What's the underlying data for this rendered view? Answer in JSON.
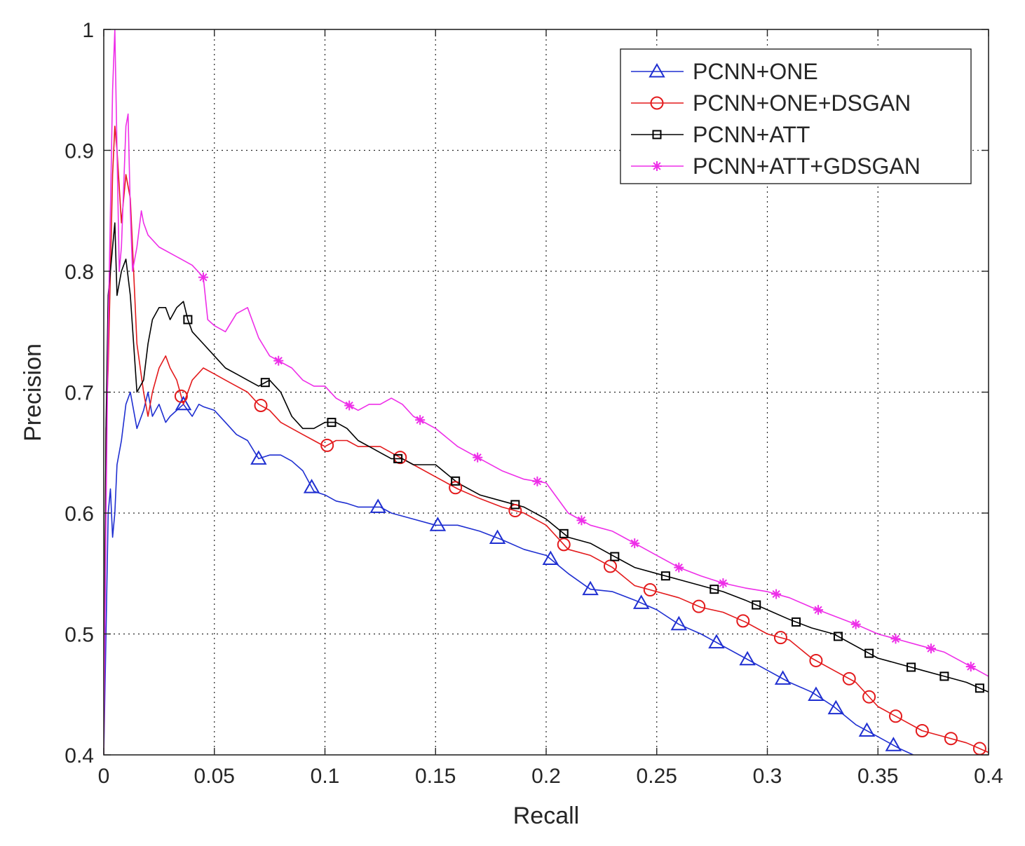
{
  "chart_data": {
    "type": "line",
    "title": "",
    "xlabel": "Recall",
    "ylabel": "Precision",
    "xlim": [
      0,
      0.4
    ],
    "ylim": [
      0.4,
      1
    ],
    "x_ticks": [
      "0",
      "0.05",
      "0.1",
      "0.15",
      "0.2",
      "0.25",
      "0.3",
      "0.35",
      "0.4"
    ],
    "y_ticks": [
      "0.4",
      "0.5",
      "0.6",
      "0.7",
      "0.8",
      "0.9",
      "1"
    ],
    "grid": true,
    "legend_position": "top-right",
    "series": [
      {
        "name": "PCNN+ONE",
        "color": "#1f2fd1",
        "marker": "triangle",
        "x": [
          0.0,
          0.001,
          0.002,
          0.003,
          0.004,
          0.005,
          0.006,
          0.008,
          0.01,
          0.012,
          0.015,
          0.018,
          0.02,
          0.022,
          0.025,
          0.028,
          0.03,
          0.033,
          0.036,
          0.04,
          0.043,
          0.045,
          0.05,
          0.055,
          0.06,
          0.065,
          0.07,
          0.075,
          0.08,
          0.085,
          0.09,
          0.095,
          0.1,
          0.105,
          0.11,
          0.115,
          0.12,
          0.125,
          0.13,
          0.14,
          0.15,
          0.16,
          0.17,
          0.18,
          0.19,
          0.2,
          0.21,
          0.22,
          0.23,
          0.24,
          0.25,
          0.26,
          0.27,
          0.28,
          0.29,
          0.3,
          0.31,
          0.32,
          0.33,
          0.34,
          0.35,
          0.36,
          0.366
        ],
        "y": [
          0.4,
          0.5,
          0.6,
          0.62,
          0.58,
          0.6,
          0.64,
          0.66,
          0.69,
          0.7,
          0.67,
          0.685,
          0.7,
          0.68,
          0.69,
          0.675,
          0.68,
          0.685,
          0.69,
          0.68,
          0.69,
          0.688,
          0.685,
          0.675,
          0.665,
          0.66,
          0.645,
          0.648,
          0.648,
          0.643,
          0.635,
          0.618,
          0.615,
          0.61,
          0.608,
          0.605,
          0.605,
          0.605,
          0.6,
          0.595,
          0.59,
          0.59,
          0.585,
          0.578,
          0.57,
          0.565,
          0.55,
          0.537,
          0.535,
          0.528,
          0.52,
          0.508,
          0.5,
          0.49,
          0.48,
          0.47,
          0.46,
          0.452,
          0.44,
          0.425,
          0.415,
          0.405,
          0.4
        ],
        "marker_x": [
          0.036,
          0.07,
          0.094,
          0.124,
          0.151,
          0.178,
          0.202,
          0.22,
          0.243,
          0.26,
          0.277,
          0.291,
          0.307,
          0.322,
          0.331,
          0.345,
          0.357
        ]
      },
      {
        "name": "PCNN+ONE+DSGAN",
        "color": "#e31a1c",
        "marker": "circle",
        "x": [
          0.0,
          0.001,
          0.002,
          0.003,
          0.004,
          0.005,
          0.006,
          0.008,
          0.01,
          0.012,
          0.015,
          0.018,
          0.02,
          0.022,
          0.025,
          0.028,
          0.03,
          0.033,
          0.036,
          0.04,
          0.045,
          0.05,
          0.055,
          0.06,
          0.065,
          0.07,
          0.075,
          0.08,
          0.085,
          0.09,
          0.095,
          0.1,
          0.105,
          0.11,
          0.115,
          0.12,
          0.125,
          0.13,
          0.135,
          0.14,
          0.15,
          0.16,
          0.17,
          0.18,
          0.19,
          0.2,
          0.21,
          0.22,
          0.23,
          0.24,
          0.25,
          0.26,
          0.27,
          0.28,
          0.29,
          0.3,
          0.31,
          0.32,
          0.33,
          0.34,
          0.35,
          0.36,
          0.37,
          0.38,
          0.39,
          0.4
        ],
        "y": [
          0.4,
          0.67,
          0.72,
          0.8,
          0.88,
          0.92,
          0.9,
          0.84,
          0.88,
          0.86,
          0.74,
          0.7,
          0.68,
          0.7,
          0.72,
          0.73,
          0.72,
          0.71,
          0.69,
          0.71,
          0.72,
          0.715,
          0.71,
          0.705,
          0.7,
          0.69,
          0.685,
          0.675,
          0.67,
          0.665,
          0.66,
          0.655,
          0.66,
          0.66,
          0.655,
          0.655,
          0.655,
          0.65,
          0.645,
          0.64,
          0.63,
          0.62,
          0.612,
          0.605,
          0.6,
          0.59,
          0.57,
          0.565,
          0.555,
          0.54,
          0.535,
          0.53,
          0.522,
          0.518,
          0.51,
          0.5,
          0.495,
          0.48,
          0.47,
          0.46,
          0.44,
          0.43,
          0.42,
          0.415,
          0.41,
          0.402
        ],
        "marker_x": [
          0.035,
          0.071,
          0.101,
          0.134,
          0.159,
          0.186,
          0.208,
          0.229,
          0.247,
          0.269,
          0.289,
          0.306,
          0.322,
          0.337,
          0.346,
          0.358,
          0.37,
          0.383,
          0.396
        ]
      },
      {
        "name": "PCNN+ATT",
        "color": "#000000",
        "marker": "square",
        "x": [
          0.0,
          0.001,
          0.002,
          0.003,
          0.004,
          0.005,
          0.006,
          0.008,
          0.01,
          0.012,
          0.015,
          0.018,
          0.02,
          0.022,
          0.025,
          0.028,
          0.03,
          0.033,
          0.036,
          0.038,
          0.04,
          0.045,
          0.05,
          0.055,
          0.06,
          0.065,
          0.07,
          0.075,
          0.08,
          0.085,
          0.09,
          0.095,
          0.1,
          0.105,
          0.11,
          0.115,
          0.12,
          0.125,
          0.13,
          0.135,
          0.14,
          0.15,
          0.16,
          0.17,
          0.18,
          0.19,
          0.2,
          0.21,
          0.22,
          0.23,
          0.24,
          0.25,
          0.26,
          0.27,
          0.28,
          0.29,
          0.3,
          0.31,
          0.32,
          0.33,
          0.34,
          0.35,
          0.36,
          0.37,
          0.38,
          0.39,
          0.4
        ],
        "y": [
          0.4,
          0.67,
          0.78,
          0.8,
          0.82,
          0.84,
          0.78,
          0.8,
          0.81,
          0.78,
          0.7,
          0.71,
          0.74,
          0.76,
          0.77,
          0.77,
          0.76,
          0.77,
          0.775,
          0.76,
          0.75,
          0.74,
          0.73,
          0.72,
          0.715,
          0.71,
          0.705,
          0.71,
          0.7,
          0.68,
          0.67,
          0.67,
          0.675,
          0.675,
          0.67,
          0.66,
          0.655,
          0.65,
          0.645,
          0.645,
          0.64,
          0.64,
          0.625,
          0.615,
          0.61,
          0.605,
          0.595,
          0.58,
          0.575,
          0.565,
          0.555,
          0.55,
          0.545,
          0.54,
          0.535,
          0.528,
          0.52,
          0.512,
          0.505,
          0.5,
          0.49,
          0.48,
          0.475,
          0.47,
          0.465,
          0.46,
          0.452
        ],
        "marker_x": [
          0.038,
          0.073,
          0.103,
          0.133,
          0.159,
          0.186,
          0.208,
          0.231,
          0.254,
          0.276,
          0.295,
          0.313,
          0.332,
          0.346,
          0.365,
          0.38,
          0.396
        ]
      },
      {
        "name": "PCNN+ATT+GDSGAN",
        "color": "#ee2ee8",
        "marker": "asterisk",
        "x": [
          0.0,
          0.001,
          0.002,
          0.003,
          0.004,
          0.005,
          0.006,
          0.007,
          0.008,
          0.01,
          0.011,
          0.012,
          0.013,
          0.015,
          0.017,
          0.018,
          0.02,
          0.025,
          0.03,
          0.035,
          0.04,
          0.045,
          0.047,
          0.05,
          0.055,
          0.06,
          0.065,
          0.067,
          0.07,
          0.075,
          0.08,
          0.085,
          0.09,
          0.095,
          0.1,
          0.105,
          0.11,
          0.115,
          0.12,
          0.125,
          0.13,
          0.135,
          0.14,
          0.15,
          0.16,
          0.17,
          0.18,
          0.19,
          0.2,
          0.21,
          0.22,
          0.23,
          0.24,
          0.25,
          0.26,
          0.27,
          0.28,
          0.29,
          0.3,
          0.31,
          0.32,
          0.33,
          0.34,
          0.35,
          0.36,
          0.37,
          0.38,
          0.39,
          0.4
        ],
        "y": [
          0.4,
          0.6,
          0.75,
          0.85,
          0.95,
          1.0,
          0.9,
          0.8,
          0.82,
          0.92,
          0.93,
          0.85,
          0.8,
          0.82,
          0.85,
          0.84,
          0.83,
          0.82,
          0.815,
          0.81,
          0.805,
          0.795,
          0.76,
          0.755,
          0.75,
          0.765,
          0.77,
          0.76,
          0.745,
          0.73,
          0.725,
          0.72,
          0.71,
          0.705,
          0.705,
          0.695,
          0.69,
          0.685,
          0.69,
          0.69,
          0.695,
          0.69,
          0.68,
          0.67,
          0.655,
          0.645,
          0.635,
          0.628,
          0.625,
          0.6,
          0.59,
          0.585,
          0.575,
          0.565,
          0.555,
          0.548,
          0.542,
          0.538,
          0.535,
          0.53,
          0.522,
          0.515,
          0.508,
          0.5,
          0.495,
          0.49,
          0.485,
          0.475,
          0.465
        ],
        "marker_x": [
          0.045,
          0.079,
          0.111,
          0.143,
          0.169,
          0.196,
          0.216,
          0.24,
          0.26,
          0.28,
          0.304,
          0.323,
          0.34,
          0.358,
          0.374,
          0.392
        ]
      }
    ]
  }
}
